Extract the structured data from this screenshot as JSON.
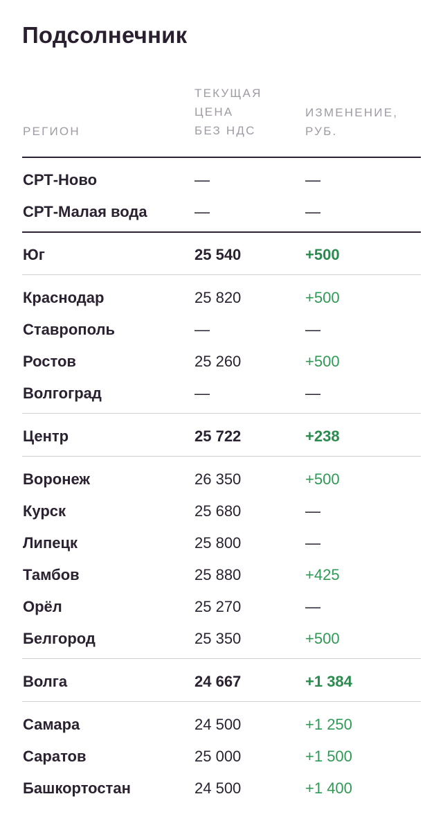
{
  "title": "Подсолнечник",
  "headers": {
    "region": "РЕГИОН",
    "price_lines": [
      "ТЕКУЩАЯ",
      "ЦЕНА",
      "БЕЗ НДС"
    ],
    "change_lines": [
      "ИЗМЕНЕНИЕ,",
      "РУБ."
    ]
  },
  "colors": {
    "accent_green": "#2f9a55",
    "text": "#2a2230",
    "muted": "#a09aa4"
  },
  "rows": [
    {
      "region": "СРТ-Ново",
      "price": "—",
      "change": "—",
      "kind": "sub"
    },
    {
      "region": "СРТ-Малая вода",
      "price": "—",
      "change": "—",
      "kind": "sub"
    },
    {
      "region": "Юг",
      "price": "25 540",
      "change": "+500",
      "kind": "total"
    },
    {
      "region": "Краснодар",
      "price": "25 820",
      "change": "+500",
      "kind": "sub"
    },
    {
      "region": "Ставрополь",
      "price": "—",
      "change": "—",
      "kind": "sub"
    },
    {
      "region": "Ростов",
      "price": "25 260",
      "change": "+500",
      "kind": "sub"
    },
    {
      "region": "Волгоград",
      "price": "—",
      "change": "—",
      "kind": "sub"
    },
    {
      "region": "Центр",
      "price": "25 722",
      "change": "+238",
      "kind": "total"
    },
    {
      "region": "Воронеж",
      "price": "26 350",
      "change": "+500",
      "kind": "sub"
    },
    {
      "region": "Курск",
      "price": "25 680",
      "change": "—",
      "kind": "sub"
    },
    {
      "region": "Липецк",
      "price": "25 800",
      "change": "—",
      "kind": "sub"
    },
    {
      "region": "Тамбов",
      "price": "25 880",
      "change": "+425",
      "kind": "sub"
    },
    {
      "region": "Орёл",
      "price": "25 270",
      "change": "—",
      "kind": "sub"
    },
    {
      "region": "Белгород",
      "price": "25 350",
      "change": "+500",
      "kind": "sub"
    },
    {
      "region": "Волга",
      "price": "24 667",
      "change": "+1 384",
      "kind": "total"
    },
    {
      "region": "Самара",
      "price": "24 500",
      "change": "+1 250",
      "kind": "sub"
    },
    {
      "region": "Саратов",
      "price": "25 000",
      "change": "+1 500",
      "kind": "sub"
    },
    {
      "region": "Башкортостан",
      "price": "24 500",
      "change": "+1 400",
      "kind": "sub"
    }
  ]
}
